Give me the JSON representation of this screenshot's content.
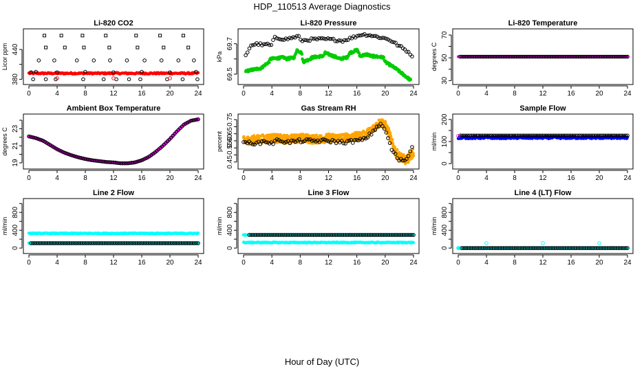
{
  "figure": {
    "title": "HDP_110513  Average Diagnostics",
    "xlabel": "Hour of Day (UTC)"
  },
  "chart_data": [
    {
      "type": "scatter",
      "title": "Li-820 CO2",
      "ylabel": "Licor ppm",
      "xlim": [
        0,
        24
      ],
      "xticks": [
        0,
        4,
        8,
        12,
        16,
        20,
        24
      ],
      "ylim": [
        375,
        476
      ],
      "yticks": [
        380,
        410,
        440
      ],
      "ytick_labels": [
        "380",
        "",
        "440"
      ],
      "series": [
        {
          "name": "co2 (red dots)",
          "color": "#ff0000",
          "marker": "dot",
          "pattern": "flat",
          "x": [
            0,
            24
          ],
          "y": [
            392,
            392
          ],
          "n": 230,
          "noise": 1.5
        },
        {
          "name": "co2 avg",
          "color": "#000000",
          "marker": "circle",
          "pattern": "points",
          "x": [
            0.3,
            1,
            4,
            8,
            12,
            16,
            20,
            23.7
          ],
          "y": [
            394,
            395,
            394,
            395,
            394,
            395,
            394,
            395
          ]
        },
        {
          "name": "co2 high",
          "color": "#000000",
          "marker": "circle",
          "pattern": "points",
          "x": [
            1.4,
            3.6,
            6.8,
            9.2,
            11.5,
            13.9,
            16.4,
            18.8,
            21.2,
            23.4
          ],
          "y": [
            418,
            418,
            418,
            418,
            418,
            418,
            418,
            418,
            418,
            418
          ]
        },
        {
          "name": "co2 zero",
          "color": "#000000",
          "marker": "circle",
          "pattern": "points",
          "x": [
            0.6,
            2.4,
            3.8,
            7.7,
            10.6,
            12.4,
            14.2,
            15.8,
            19.6,
            21.8,
            23.9
          ],
          "y": [
            380,
            380,
            380,
            380,
            380,
            380,
            380,
            380,
            380,
            380,
            380
          ]
        },
        {
          "name": "co2 zero red",
          "color": "#ff0000",
          "marker": "circle",
          "pattern": "points",
          "x": [
            4,
            12,
            20
          ],
          "y": [
            382,
            382,
            382
          ]
        },
        {
          "name": "co2 span",
          "color": "#000000",
          "marker": "square",
          "pattern": "points",
          "x": [
            2.2,
            2.4,
            4.6,
            5.1,
            7.6,
            7.8,
            10.9,
            11.4,
            15.2,
            15.4,
            18.6,
            19.1,
            21.9,
            22.6
          ],
          "y": [
            468,
            444,
            468,
            444,
            468,
            444,
            468,
            444,
            468,
            444,
            468,
            444,
            468,
            444
          ]
        }
      ]
    },
    {
      "type": "scatter",
      "title": "Li-820 Pressure",
      "ylabel": "kPa",
      "xlim": [
        0,
        24
      ],
      "xticks": [
        0,
        4,
        8,
        12,
        16,
        20,
        24
      ],
      "ylim": [
        69.45,
        69.78
      ],
      "yticks": [
        69.5,
        69.6,
        69.7
      ],
      "ytick_labels": [
        "69.5",
        "",
        "69.7"
      ],
      "series": [
        {
          "name": "pressure raw",
          "color": "#00cc00",
          "marker": "dot",
          "pattern": "interp",
          "x": [
            0.3,
            2.5,
            3,
            3.6,
            3.8,
            5.7,
            6,
            7.2,
            7.5,
            8.2,
            8.4,
            9.4,
            9.7,
            11.3,
            11.5,
            13.2,
            13.5,
            14.6,
            15,
            16.1,
            16.4,
            17.5,
            17.9,
            19.8,
            20,
            21.4,
            22.5,
            23.6
          ],
          "y": [
            69.52,
            69.54,
            69.56,
            69.58,
            69.6,
            69.61,
            69.6,
            69.61,
            69.66,
            69.64,
            69.58,
            69.6,
            69.61,
            69.62,
            69.64,
            69.61,
            69.6,
            69.61,
            69.64,
            69.66,
            69.62,
            69.63,
            69.62,
            69.61,
            69.58,
            69.54,
            69.5,
            69.46
          ],
          "n": 420,
          "noise": 0.008
        },
        {
          "name": "pressure avg",
          "color": "#000000",
          "marker": "circle",
          "pattern": "interp",
          "x": [
            0.3,
            1,
            2,
            3,
            3.4,
            3.8,
            4.4,
            6,
            7.8,
            8,
            10,
            12,
            14,
            16,
            16.5,
            17.5,
            18.5,
            19.5,
            20.5,
            21.5,
            22.5,
            23.5,
            23.8
          ],
          "y": [
            69.62,
            69.69,
            69.7,
            69.69,
            69.7,
            69.68,
            69.74,
            69.73,
            69.75,
            69.72,
            69.73,
            69.73,
            69.72,
            69.75,
            69.76,
            69.76,
            69.75,
            69.74,
            69.73,
            69.7,
            69.67,
            69.64,
            69.61
          ],
          "n": 92,
          "noise": 0.008
        }
      ]
    },
    {
      "type": "scatter",
      "title": "Li-820 Temperature",
      "ylabel": "degrees C",
      "xlim": [
        0,
        24
      ],
      "xticks": [
        0,
        4,
        8,
        12,
        16,
        20,
        24
      ],
      "ylim": [
        29,
        73
      ],
      "yticks": [
        30,
        40,
        50,
        60,
        70
      ],
      "ytick_labels": [
        "30",
        "",
        "50",
        "",
        "70"
      ],
      "series": [
        {
          "name": "temp raw",
          "color": "#ff00ff",
          "marker": "dot",
          "pattern": "flat",
          "x": [
            0,
            24
          ],
          "y": [
            51,
            51
          ],
          "n": 220,
          "noise": 0
        },
        {
          "name": "temp avg",
          "color": "#000000",
          "marker": "circle",
          "pattern": "flat",
          "x": [
            0.3,
            24
          ],
          "y": [
            51,
            51
          ],
          "n": 90,
          "noise": 0
        }
      ]
    },
    {
      "type": "scatter",
      "title": "Ambient Box Temperature",
      "ylabel": "degrees C",
      "xlim": [
        0,
        24
      ],
      "xticks": [
        0,
        4,
        8,
        12,
        16,
        20,
        24
      ],
      "ylim": [
        18.6,
        24.4
      ],
      "yticks": [
        19,
        20,
        21,
        22,
        23,
        24
      ],
      "ytick_labels": [
        "19",
        "",
        "21",
        "",
        "23",
        ""
      ],
      "series": [
        {
          "name": "box temp raw",
          "color": "#ff00ff",
          "marker": "dot",
          "pattern": "interp",
          "x": [
            0,
            1,
            2,
            3,
            4,
            5,
            6,
            7,
            8,
            9,
            10,
            11,
            12,
            13,
            14,
            15,
            16,
            17,
            18,
            19,
            20,
            21,
            22,
            23,
            24
          ],
          "y": [
            22.1,
            21.9,
            21.6,
            21.1,
            20.6,
            20.2,
            19.9,
            19.65,
            19.45,
            19.3,
            19.2,
            19.1,
            19.05,
            18.95,
            18.95,
            19.05,
            19.3,
            19.7,
            20.3,
            21.0,
            21.8,
            22.7,
            23.5,
            23.95,
            24.1
          ],
          "n": 300,
          "noise": 0.02
        },
        {
          "name": "box temp avg",
          "color": "#000000",
          "marker": "circle",
          "pattern": "interp",
          "x": [
            0,
            1,
            2,
            3,
            4,
            5,
            6,
            7,
            8,
            9,
            10,
            11,
            12,
            13,
            14,
            15,
            16,
            17,
            18,
            19,
            20,
            21,
            22,
            23,
            24
          ],
          "y": [
            22.1,
            21.9,
            21.6,
            21.1,
            20.6,
            20.2,
            19.9,
            19.65,
            19.45,
            19.3,
            19.2,
            19.1,
            19.05,
            18.95,
            18.95,
            19.05,
            19.3,
            19.7,
            20.3,
            21.0,
            21.8,
            22.7,
            23.5,
            23.95,
            24.1
          ],
          "n": 95,
          "noise": 0
        }
      ]
    },
    {
      "type": "scatter",
      "title": "Gas Stream RH",
      "ylabel": "percent",
      "xlim": [
        0,
        24
      ],
      "xticks": [
        0,
        4,
        8,
        12,
        16,
        20,
        24
      ],
      "ylim": [
        0.42,
        0.77
      ],
      "yticks": [
        0.45,
        0.5,
        0.55,
        0.6,
        0.65,
        0.7,
        0.75
      ],
      "ytick_labels": [
        "0.45",
        "",
        "0.55",
        "0.60",
        "0.65",
        "",
        "0.75"
      ],
      "series": [
        {
          "name": "rh raw",
          "color": "#ffa500",
          "marker": "dot",
          "pattern": "interp",
          "x": [
            0,
            2,
            4,
            6,
            8,
            10,
            12,
            14,
            16,
            17,
            18,
            19,
            19.5,
            20,
            20.5,
            21,
            21.5,
            22,
            23,
            24
          ],
          "y": [
            0.6,
            0.61,
            0.62,
            0.61,
            0.62,
            0.61,
            0.62,
            0.62,
            0.63,
            0.64,
            0.67,
            0.72,
            0.73,
            0.71,
            0.66,
            0.58,
            0.52,
            0.49,
            0.46,
            0.52
          ],
          "n": 700,
          "noise": 0.03
        },
        {
          "name": "rh avg",
          "color": "#000000",
          "marker": "circle",
          "pattern": "interp",
          "x": [
            0,
            1,
            2,
            3,
            4,
            5,
            6,
            8,
            10,
            12,
            14,
            16,
            17,
            18,
            19,
            19.5,
            20,
            20.5,
            21,
            22,
            23,
            23.5,
            23.8
          ],
          "y": [
            0.58,
            0.59,
            0.58,
            0.6,
            0.58,
            0.61,
            0.59,
            0.6,
            0.6,
            0.6,
            0.59,
            0.6,
            0.61,
            0.65,
            0.71,
            0.71,
            0.68,
            0.6,
            0.53,
            0.46,
            0.47,
            0.52,
            0.56
          ],
          "n": 92,
          "noise": 0.012
        }
      ]
    },
    {
      "type": "scatter",
      "title": "Sample Flow",
      "ylabel": "ml/min",
      "xlim": [
        0,
        24
      ],
      "xticks": [
        0,
        4,
        8,
        12,
        16,
        20,
        24
      ],
      "ylim": [
        -12,
        212
      ],
      "yticks": [
        0,
        50,
        100,
        150,
        200
      ],
      "ytick_labels": [
        "0",
        "",
        "100",
        "",
        "200"
      ],
      "series": [
        {
          "name": "sample flow raw",
          "color": "#0000ff",
          "marker": "dot",
          "pattern": "flat",
          "x": [
            0,
            24
          ],
          "y": [
            118,
            118
          ],
          "n": 360,
          "noise": 5
        },
        {
          "name": "sample flow avg",
          "color": "#000000",
          "marker": "circle",
          "pattern": "flat",
          "x": [
            0.3,
            24
          ],
          "y": [
            127,
            127
          ],
          "n": 92,
          "noise": 0
        },
        {
          "name": "sample flow start",
          "color": "#ff00ff",
          "marker": "circle",
          "pattern": "points",
          "x": [
            0
          ],
          "y": [
            125
          ]
        }
      ]
    },
    {
      "type": "scatter",
      "title": "Line 2 Flow",
      "ylabel": "ml/min",
      "xlim": [
        0,
        24
      ],
      "xticks": [
        0,
        4,
        8,
        12,
        16,
        20,
        24
      ],
      "ylim": [
        -60,
        1050
      ],
      "yticks": [
        0,
        200,
        400,
        600,
        800,
        1000
      ],
      "ytick_labels": [
        "0",
        "",
        "400",
        "",
        "800",
        ""
      ],
      "series": [
        {
          "name": "line2 raw",
          "color": "#00ffff",
          "marker": "dot",
          "pattern": "flat",
          "x": [
            0,
            24
          ],
          "y": [
            330,
            330
          ],
          "n": 330,
          "noise": 10
        },
        {
          "name": "line2 low",
          "color": "#00ffff",
          "marker": "dot",
          "pattern": "flat",
          "x": [
            0,
            24
          ],
          "y": [
            110,
            110
          ],
          "n": 120,
          "noise": 3
        },
        {
          "name": "line2 avg",
          "color": "#000000",
          "marker": "circle",
          "pattern": "flat",
          "x": [
            0.3,
            24
          ],
          "y": [
            110,
            110
          ],
          "n": 92,
          "noise": 0
        }
      ]
    },
    {
      "type": "scatter",
      "title": "Line 3 Flow",
      "ylabel": "ml/min",
      "xlim": [
        0,
        24
      ],
      "xticks": [
        0,
        4,
        8,
        12,
        16,
        20,
        24
      ],
      "ylim": [
        -60,
        1050
      ],
      "yticks": [
        0,
        200,
        400,
        600,
        800,
        1000
      ],
      "ytick_labels": [
        "0",
        "",
        "400",
        "",
        "800",
        ""
      ],
      "series": [
        {
          "name": "line3 raw",
          "color": "#00ffff",
          "marker": "dot",
          "pattern": "flat",
          "x": [
            0,
            24
          ],
          "y": [
            125,
            125
          ],
          "n": 330,
          "noise": 10
        },
        {
          "name": "line3 high",
          "color": "#00ffff",
          "marker": "dot",
          "pattern": "flat",
          "x": [
            0,
            24
          ],
          "y": [
            295,
            295
          ],
          "n": 120,
          "noise": 3
        },
        {
          "name": "line3 avg",
          "color": "#000000",
          "marker": "circle",
          "pattern": "flat",
          "x": [
            0.8,
            24
          ],
          "y": [
            295,
            295
          ],
          "n": 90,
          "noise": 0
        },
        {
          "name": "line3 start",
          "color": "#00ffff",
          "marker": "circle",
          "pattern": "points",
          "x": [
            0.2
          ],
          "y": [
            295
          ]
        }
      ]
    },
    {
      "type": "scatter",
      "title": "Line 4 (LT) Flow",
      "ylabel": "ml/min",
      "xlim": [
        0,
        24
      ],
      "xticks": [
        0,
        4,
        8,
        12,
        16,
        20,
        24
      ],
      "ylim": [
        -60,
        1050
      ],
      "yticks": [
        0,
        200,
        400,
        600,
        800,
        1000
      ],
      "ytick_labels": [
        "0",
        "",
        "400",
        "",
        "800",
        ""
      ],
      "series": [
        {
          "name": "line4 raw",
          "color": "#00ffff",
          "marker": "dot",
          "pattern": "flat",
          "x": [
            0,
            24
          ],
          "y": [
            0,
            0
          ],
          "n": 300,
          "noise": 3
        },
        {
          "name": "line4 avg",
          "color": "#000000",
          "marker": "circle",
          "pattern": "flat",
          "x": [
            0.5,
            24
          ],
          "y": [
            0,
            0
          ],
          "n": 92,
          "noise": 0
        },
        {
          "name": "line4 spikes",
          "color": "#00ffff",
          "marker": "circle",
          "pattern": "points",
          "x": [
            0,
            4,
            12,
            20
          ],
          "y": [
            0,
            110,
            110,
            110
          ]
        }
      ]
    }
  ]
}
